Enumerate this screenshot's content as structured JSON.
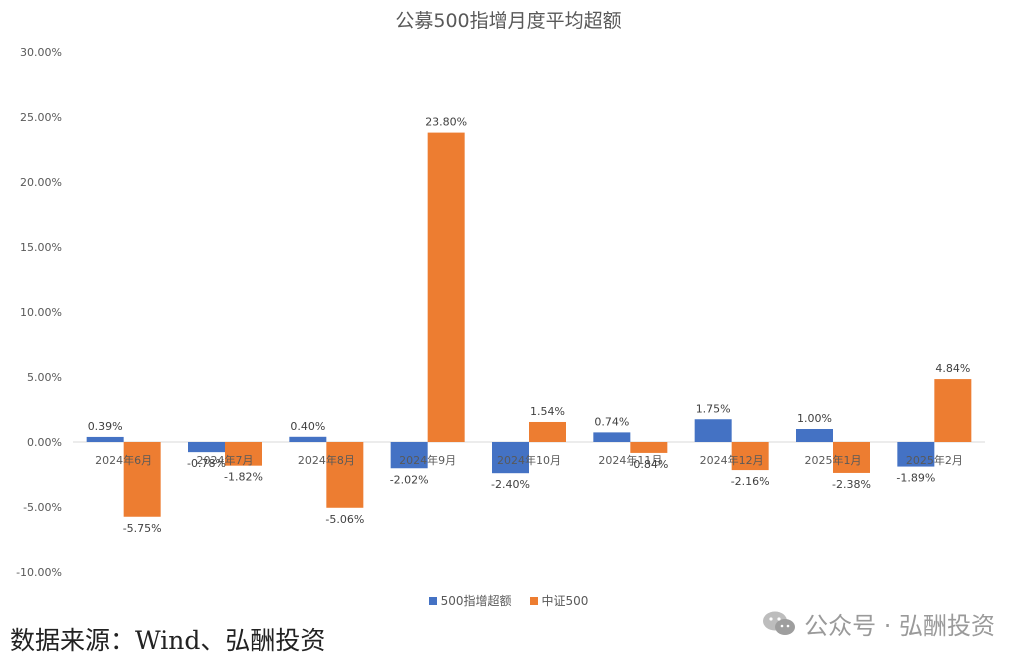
{
  "chart_data": {
    "type": "bar",
    "title": "公募500指增月度平均超额",
    "categories": [
      "2024年6月",
      "2024年7月",
      "2024年8月",
      "2024年9月",
      "2024年10月",
      "2024年11月",
      "2024年12月",
      "2025年1月",
      "2025年2月"
    ],
    "series": [
      {
        "name": "500指增超额",
        "color": "#4472C4",
        "values": [
          0.39,
          -0.78,
          0.4,
          -2.02,
          -2.4,
          0.74,
          1.75,
          1.0,
          -1.89
        ],
        "labels": [
          "0.39%",
          "-0.78%",
          "0.40%",
          "-2.02%",
          "-2.40%",
          "0.74%",
          "1.75%",
          "1.00%",
          "-1.89%"
        ]
      },
      {
        "name": "中证500",
        "color": "#ED7D31",
        "values": [
          -5.75,
          -1.82,
          -5.06,
          23.8,
          1.54,
          -0.84,
          -2.16,
          -2.38,
          4.84
        ],
        "labels": [
          "-5.75%",
          "-1.82%",
          "-5.06%",
          "23.80%",
          "1.54%",
          "-0.84%",
          "-2.16%",
          "-2.38%",
          "4.84%"
        ]
      }
    ],
    "ylim": [
      -10,
      30
    ],
    "yticks": [
      30,
      25,
      20,
      15,
      10,
      5,
      0,
      -5,
      -10
    ],
    "ytick_labels": [
      "30.00%",
      "25.00%",
      "20.00%",
      "15.00%",
      "10.00%",
      "5.00%",
      "0.00%",
      "-5.00%",
      "-10.00%"
    ],
    "grid": false,
    "legend": "bottom"
  },
  "footer": {
    "source": "数据来源：Wind、弘酬投资",
    "watermark": "公众号 · 弘酬投资"
  }
}
